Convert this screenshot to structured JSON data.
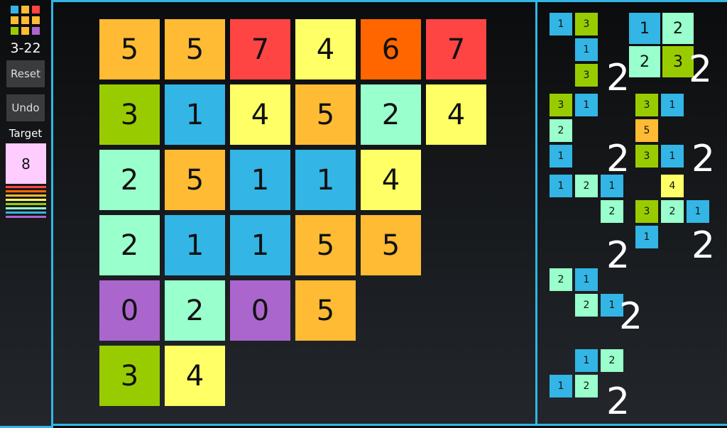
{
  "colors": {
    "0": "#aa66cc",
    "1": "#33b5e5",
    "2": "#99ffcc",
    "3": "#99cc00",
    "4": "#ffff66",
    "5": "#ffbb33",
    "6": "#ff6600",
    "7": "#ff4444",
    "8": "#ffccff"
  },
  "sidebar": {
    "logo_tiles": [
      1,
      5,
      7,
      5,
      5,
      5,
      3,
      5,
      0
    ],
    "level": "3-22",
    "reset_label": "Reset",
    "undo_label": "Undo",
    "target_label": "Target",
    "target_value": "8",
    "stripes": [
      "#ff4444",
      "#ff6600",
      "#ffbb33",
      "#ffff66",
      "#99cc00",
      "#99ffcc",
      "#33b5e5",
      "#aa66cc"
    ]
  },
  "board": [
    [
      5,
      5,
      7,
      4,
      6,
      7
    ],
    [
      3,
      1,
      4,
      5,
      2,
      4
    ],
    [
      2,
      5,
      1,
      1,
      4
    ],
    [
      2,
      1,
      1,
      5,
      5
    ],
    [
      0,
      2,
      0,
      5
    ],
    [
      3,
      4
    ]
  ],
  "pieces": [
    {
      "count": "2",
      "cells": [
        [
          0,
          0,
          1
        ],
        [
          1,
          0,
          3
        ],
        [
          1,
          1,
          1
        ],
        [
          1,
          2,
          3
        ]
      ]
    },
    {
      "count": "2",
      "large": true,
      "cells": [
        [
          0,
          0,
          1
        ],
        [
          1,
          0,
          2
        ],
        [
          0,
          1,
          2
        ],
        [
          1,
          1,
          3
        ]
      ]
    },
    {
      "count": "2",
      "cells": [
        [
          0,
          0,
          3
        ],
        [
          1,
          0,
          1
        ],
        [
          0,
          1,
          2
        ],
        [
          0,
          2,
          1
        ]
      ]
    },
    {
      "count": "2",
      "cells": [
        [
          0,
          0,
          3
        ],
        [
          1,
          0,
          1
        ],
        [
          0,
          1,
          5
        ],
        [
          0,
          2,
          3
        ],
        [
          1,
          2,
          1
        ]
      ]
    },
    {
      "count": "2",
      "cells": [
        [
          0,
          0,
          1
        ],
        [
          1,
          0,
          2
        ],
        [
          2,
          0,
          1
        ],
        [
          2,
          1,
          2
        ]
      ]
    },
    {
      "count": "2",
      "cells": [
        [
          1,
          0,
          4
        ],
        [
          0,
          1,
          3
        ],
        [
          1,
          1,
          2
        ],
        [
          2,
          1,
          1
        ],
        [
          0,
          2,
          1
        ]
      ]
    },
    {
      "count": "2",
      "cells": [
        [
          0,
          0,
          2
        ],
        [
          1,
          0,
          1
        ],
        [
          1,
          1,
          2
        ],
        [
          2,
          1,
          1
        ]
      ]
    },
    {
      "count": "2",
      "cells": [
        [
          1,
          0,
          1
        ],
        [
          2,
          0,
          2
        ],
        [
          0,
          1,
          1
        ],
        [
          1,
          1,
          2
        ]
      ]
    }
  ]
}
